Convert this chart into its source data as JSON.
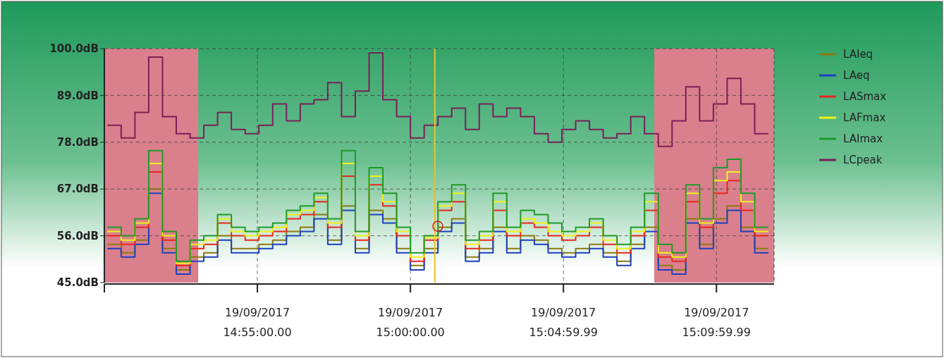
{
  "chart_data": {
    "type": "step",
    "x": [
      "2017-09-19T14:50:06",
      "2017-09-19T14:50:33",
      "2017-09-19T14:51:00",
      "2017-09-19T14:51:27",
      "2017-09-19T14:51:54",
      "2017-09-19T14:52:21",
      "2017-09-19T14:52:48",
      "2017-09-19T14:53:15",
      "2017-09-19T14:53:42",
      "2017-09-19T14:54:09",
      "2017-09-19T14:54:36",
      "2017-09-19T14:55:03",
      "2017-09-19T14:55:30",
      "2017-09-19T14:55:57",
      "2017-09-19T14:56:24",
      "2017-09-19T14:56:51",
      "2017-09-19T14:57:18",
      "2017-09-19T14:57:45",
      "2017-09-19T14:58:12",
      "2017-09-19T14:58:39",
      "2017-09-19T14:59:06",
      "2017-09-19T14:59:33",
      "2017-09-19T15:00:00",
      "2017-09-19T15:00:27",
      "2017-09-19T15:00:54",
      "2017-09-19T15:01:21",
      "2017-09-19T15:01:48",
      "2017-09-19T15:02:15",
      "2017-09-19T15:02:42",
      "2017-09-19T15:03:09",
      "2017-09-19T15:03:36",
      "2017-09-19T15:04:03",
      "2017-09-19T15:04:30",
      "2017-09-19T15:04:57",
      "2017-09-19T15:05:24",
      "2017-09-19T15:05:51",
      "2017-09-19T15:06:18",
      "2017-09-19T15:06:45",
      "2017-09-19T15:07:12",
      "2017-09-19T15:07:39",
      "2017-09-19T15:08:06",
      "2017-09-19T15:08:33",
      "2017-09-19T15:09:00",
      "2017-09-19T15:09:27",
      "2017-09-19T15:09:54",
      "2017-09-19T15:10:21",
      "2017-09-19T15:10:48",
      "2017-09-19T15:11:15",
      "2017-09-19T15:11:42"
    ],
    "series": [
      {
        "name": "LAIeq",
        "color": "#8a7a10",
        "values": [
          54,
          52,
          55,
          67,
          53,
          48,
          51,
          52,
          56,
          53,
          53,
          54,
          55,
          57,
          58,
          61,
          55,
          63,
          53,
          62,
          60,
          53,
          49,
          53,
          58,
          60,
          51,
          53,
          58,
          53,
          56,
          55,
          53,
          52,
          53,
          54,
          52,
          50,
          54,
          58,
          49,
          48,
          60,
          54,
          60,
          63,
          58,
          53,
          53
        ]
      },
      {
        "name": "LAeq",
        "color": "#1f3fbf",
        "values": [
          53,
          51,
          54,
          66,
          52,
          47,
          50,
          51,
          55,
          52,
          52,
          53,
          54,
          56,
          57,
          60,
          54,
          62,
          52,
          61,
          59,
          52,
          48,
          52,
          57,
          59,
          50,
          52,
          57,
          52,
          55,
          54,
          52,
          51,
          52,
          53,
          51,
          49,
          53,
          57,
          48,
          47,
          59,
          53,
          59,
          62,
          57,
          52,
          52
        ]
      },
      {
        "name": "LASmax",
        "color": "#e8261c",
        "values": [
          56,
          54,
          58,
          71,
          55,
          49,
          53,
          54,
          59,
          56,
          55,
          56,
          57,
          60,
          61,
          64,
          58,
          70,
          55,
          68,
          63,
          56,
          50,
          55,
          62,
          64,
          53,
          55,
          62,
          56,
          59,
          58,
          56,
          55,
          56,
          58,
          54,
          52,
          56,
          62,
          51,
          50,
          64,
          58,
          66,
          69,
          62,
          56,
          56
        ]
      },
      {
        "name": "LAFmax",
        "color": "#f2f21a",
        "values": [
          57,
          55,
          59,
          73,
          56,
          49.5,
          54,
          55,
          60,
          57,
          56,
          57,
          58,
          61,
          62,
          65,
          59,
          73,
          56,
          70,
          64,
          57,
          51,
          55.5,
          63,
          66,
          54,
          56,
          64,
          57,
          60,
          59,
          57,
          56,
          57,
          59,
          55,
          53,
          57,
          64,
          52,
          51,
          66,
          59,
          69,
          71,
          64,
          57,
          57
        ]
      },
      {
        "name": "LAImax",
        "color": "#1e9a28",
        "values": [
          58,
          56,
          60,
          76,
          57,
          50,
          55,
          56,
          61,
          58,
          57,
          58,
          59,
          62,
          63,
          66,
          60,
          76,
          57,
          72,
          66,
          58,
          52,
          56,
          64,
          68,
          55,
          57,
          66,
          58,
          62,
          61,
          59,
          57,
          58,
          60,
          56,
          54,
          58,
          66,
          54,
          52,
          68,
          60,
          72,
          74,
          66,
          58,
          58
        ]
      },
      {
        "name": "LCpeak",
        "color": "#7a1f5a",
        "values": [
          82,
          79,
          85,
          98,
          84,
          80,
          79,
          82,
          85,
          81,
          80,
          82,
          87,
          83,
          87,
          88,
          92,
          84,
          90,
          99,
          88,
          84,
          79,
          82,
          84,
          86,
          81,
          87,
          84,
          86,
          84,
          80,
          78,
          81,
          83,
          81,
          79,
          80,
          84,
          80,
          77,
          83,
          91,
          83,
          87,
          93,
          87,
          80,
          80
        ]
      }
    ],
    "xlim": [
      "2017-09-19T14:50:00",
      "2017-09-19T15:11:53"
    ],
    "xticks": [
      {
        "value": "2017-09-19T14:50",
        "label": null
      },
      {
        "value": "2017-09-19T14:55",
        "label": "19/09/2017\n14:55:00.00"
      },
      {
        "value": "2017-09-19T15:00",
        "label": "19/09/2017\n15:00:00.00"
      },
      {
        "value": "2017-09-19T15:05",
        "label": "19/09/2017\n15:04:59.99"
      },
      {
        "value": "2017-09-19T15:10",
        "label": "19/09/2017\n15:09:59.99"
      }
    ],
    "ylim": [
      45,
      100
    ],
    "yticks": [
      {
        "value": 45,
        "label": "45.0dB"
      },
      {
        "value": 56,
        "label": "56.0dB"
      },
      {
        "value": 67,
        "label": "67.0dB"
      },
      {
        "value": 78,
        "label": "78.0dB"
      },
      {
        "value": 89,
        "label": "89.0dB"
      },
      {
        "value": 100,
        "label": "100.0dB"
      }
    ],
    "grid": true,
    "legend": "top right",
    "bands": [
      {
        "axis": "x",
        "from": "2017-09-19T14:50:00",
        "to": "2017-09-19T14:53:04",
        "color": "#d9808c"
      },
      {
        "axis": "x",
        "from": "2017-09-19T15:07:58",
        "to": "2017-09-19T15:11:53",
        "color": "#d9808c"
      }
    ],
    "ref_lines": [
      {
        "axis": "x",
        "value": "2017-09-19T15:00:48",
        "color": "#f0c020"
      }
    ]
  }
}
